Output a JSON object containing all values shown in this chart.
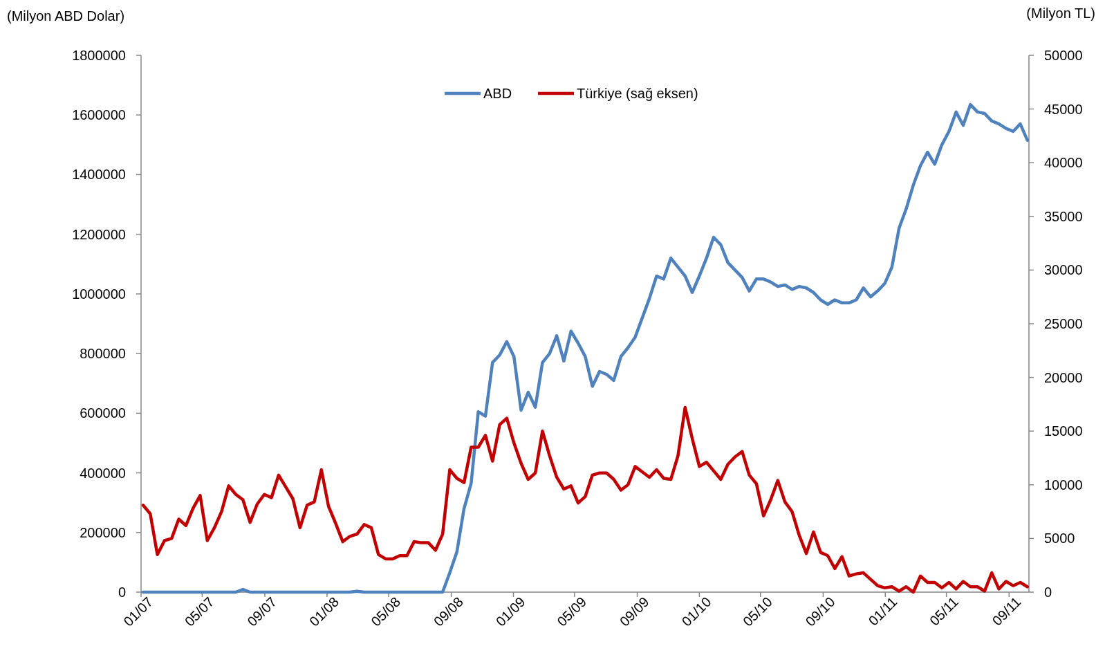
{
  "chart_data": {
    "type": "line",
    "ylabel": "(Milyon ABD Dolar)",
    "y2label": "(Milyon TL)",
    "x": [
      "2007-01-05",
      "2007-01-19",
      "2007-02-02",
      "2007-02-16",
      "2007-03-02",
      "2007-03-16",
      "2007-03-30",
      "2007-04-13",
      "2007-04-27",
      "2007-05-11",
      "2007-05-25",
      "2007-06-08",
      "2007-06-22",
      "2007-07-06",
      "2007-07-20",
      "2007-08-03",
      "2007-08-17",
      "2007-08-31",
      "2007-09-14",
      "2007-09-28",
      "2007-10-12",
      "2007-10-26",
      "2007-11-09",
      "2007-11-23",
      "2007-12-07",
      "2007-12-21",
      "2008-01-04",
      "2008-01-18",
      "2008-02-01",
      "2008-02-15",
      "2008-02-29",
      "2008-03-14",
      "2008-03-28",
      "2008-04-11",
      "2008-04-25",
      "2008-05-09",
      "2008-05-23",
      "2008-06-06",
      "2008-06-20",
      "2008-07-04",
      "2008-07-18",
      "2008-08-01",
      "2008-08-15",
      "2008-08-29",
      "2008-09-12",
      "2008-09-26",
      "2008-10-10",
      "2008-10-24",
      "2008-11-07",
      "2008-11-21",
      "2008-12-05",
      "2008-12-19",
      "2009-01-02",
      "2009-01-16",
      "2009-01-30",
      "2009-02-13",
      "2009-02-27",
      "2009-03-13",
      "2009-03-27",
      "2009-04-10",
      "2009-04-24",
      "2009-05-08",
      "2009-05-22",
      "2009-06-05",
      "2009-06-19",
      "2009-07-03",
      "2009-07-17",
      "2009-07-31",
      "2009-08-14",
      "2009-08-28",
      "2009-09-11",
      "2009-09-25",
      "2009-10-09",
      "2009-10-23",
      "2009-11-06",
      "2009-11-20",
      "2009-12-04",
      "2009-12-18",
      "2010-01-01",
      "2010-01-15",
      "2010-01-29",
      "2010-02-12",
      "2010-02-26",
      "2010-03-12",
      "2010-03-26",
      "2010-04-09",
      "2010-04-23",
      "2010-05-07",
      "2010-05-21",
      "2010-06-04",
      "2010-06-18",
      "2010-07-02",
      "2010-07-16",
      "2010-07-30",
      "2010-08-13",
      "2010-08-27",
      "2010-09-10",
      "2010-09-24",
      "2010-10-08",
      "2010-10-22",
      "2010-11-05",
      "2010-11-19",
      "2010-12-03",
      "2010-12-17",
      "2010-12-31",
      "2011-01-14",
      "2011-01-28",
      "2011-02-11",
      "2011-02-25",
      "2011-03-11",
      "2011-03-25",
      "2011-04-08",
      "2011-04-22",
      "2011-05-06",
      "2011-05-20",
      "2011-06-03",
      "2011-06-17",
      "2011-07-01",
      "2011-07-15",
      "2011-07-29",
      "2011-08-12",
      "2011-08-26",
      "2011-09-09",
      "2011-09-23",
      "2011-10-07"
    ],
    "series": [
      {
        "name": "ABD",
        "color": "#4f81bd",
        "values": [
          0,
          0,
          0,
          0,
          0,
          0,
          0,
          0,
          0,
          0,
          0,
          0,
          0,
          0,
          9000,
          0,
          0,
          0,
          0,
          0,
          0,
          0,
          0,
          0,
          0,
          0,
          0,
          0,
          0,
          0,
          3000,
          0,
          0,
          0,
          0,
          0,
          0,
          0,
          0,
          0,
          0,
          0,
          0,
          65000,
          135000,
          280000,
          365000,
          605000,
          590000,
          770000,
          795000,
          840000,
          790000,
          610000,
          670000,
          620000,
          770000,
          800000,
          860000,
          775000,
          875000,
          835000,
          790000,
          690000,
          740000,
          730000,
          710000,
          790000,
          820000,
          855000,
          920000,
          985000,
          1060000,
          1050000,
          1120000,
          1090000,
          1060000,
          1005000,
          1060000,
          1120000,
          1190000,
          1165000,
          1105000,
          1080000,
          1055000,
          1010000,
          1050000,
          1050000,
          1040000,
          1025000,
          1030000,
          1015000,
          1025000,
          1020000,
          1005000,
          980000,
          965000,
          980000,
          970000,
          970000,
          980000,
          1020000,
          990000,
          1010000,
          1035000,
          1090000,
          1220000,
          1285000,
          1365000,
          1430000,
          1475000,
          1435000,
          1500000,
          1545000,
          1610000,
          1565000,
          1635000,
          1610000,
          1605000,
          1580000,
          1570000,
          1555000,
          1545000,
          1570000,
          1515000
        ]
      },
      {
        "name": "Türkiye (sağ eksen)",
        "color": "#c00000",
        "axis": "y2",
        "values": [
          8100,
          7300,
          3500,
          4800,
          5000,
          6800,
          6200,
          7800,
          9000,
          4800,
          6000,
          7500,
          9900,
          9100,
          8600,
          6500,
          8200,
          9100,
          8800,
          10900,
          9800,
          8700,
          6000,
          8100,
          8400,
          11400,
          8000,
          6400,
          4700,
          5200,
          5400,
          6300,
          6000,
          3500,
          3100,
          3100,
          3400,
          3400,
          4700,
          4600,
          4600,
          3900,
          5400,
          11400,
          10600,
          10200,
          13500,
          13500,
          14600,
          12200,
          15600,
          16200,
          13900,
          12000,
          10500,
          11100,
          15000,
          12700,
          10700,
          9600,
          9900,
          8300,
          8900,
          10900,
          11100,
          11100,
          10500,
          9500,
          10000,
          11700,
          11200,
          10700,
          11400,
          10600,
          10500,
          12700,
          17200,
          14300,
          11700,
          12100,
          11300,
          10500,
          11900,
          12600,
          13100,
          10900,
          10100,
          7100,
          8600,
          10400,
          8400,
          7500,
          5300,
          3600,
          5600,
          3700,
          3400,
          2200,
          3300,
          1500,
          1700,
          1800,
          1200,
          600,
          400,
          500,
          100,
          500,
          0,
          1500,
          900,
          900,
          400,
          900,
          300,
          1000,
          500,
          500,
          100,
          1800,
          300,
          1000,
          600,
          900,
          500
        ]
      }
    ],
    "xlim": [
      "2007-01-01",
      "2011-10-10"
    ],
    "xticks": [
      {
        "value": "2007-01-01",
        "label": "01/07"
      },
      {
        "value": "2007-05-01",
        "label": "05/07"
      },
      {
        "value": "2007-09-01",
        "label": "09/07"
      },
      {
        "value": "2008-01-01",
        "label": "01/08"
      },
      {
        "value": "2008-05-01",
        "label": "05/08"
      },
      {
        "value": "2008-09-01",
        "label": "09/08"
      },
      {
        "value": "2009-01-01",
        "label": "01/09"
      },
      {
        "value": "2009-05-01",
        "label": "05/09"
      },
      {
        "value": "2009-09-01",
        "label": "09/09"
      },
      {
        "value": "2010-01-01",
        "label": "01/10"
      },
      {
        "value": "2010-05-01",
        "label": "05/10"
      },
      {
        "value": "2010-09-01",
        "label": "09/10"
      },
      {
        "value": "2011-01-01",
        "label": "01/11"
      },
      {
        "value": "2011-05-01",
        "label": "05/11"
      },
      {
        "value": "2011-09-01",
        "label": "09/11"
      }
    ],
    "ylim": [
      0,
      1800000
    ],
    "yticks": [
      0,
      200000,
      400000,
      600000,
      800000,
      1000000,
      1200000,
      1400000,
      1600000,
      1800000
    ],
    "y2lim": [
      0,
      50000
    ],
    "y2ticks": [
      0,
      5000,
      10000,
      15000,
      20000,
      25000,
      30000,
      35000,
      40000,
      45000,
      50000
    ],
    "legend": "top",
    "grid": false,
    "marker": "none",
    "line_style": "solid"
  }
}
